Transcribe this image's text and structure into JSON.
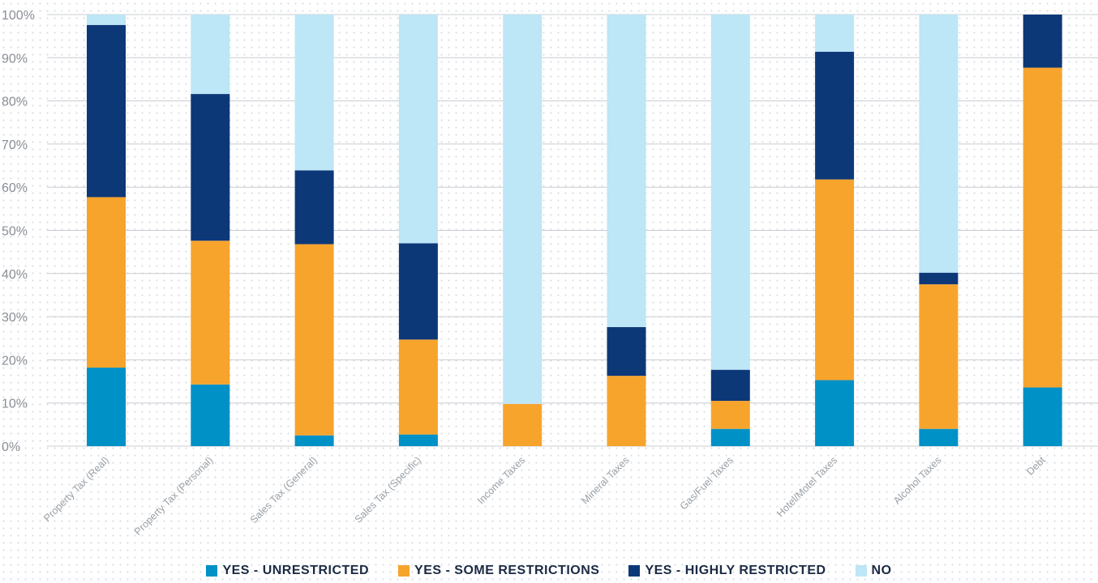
{
  "chart_data": {
    "type": "bar",
    "stacked": true,
    "normalized": true,
    "categories": [
      "Property Tax (Real)",
      "Property Tax (Personal)",
      "Sales Tax (General)",
      "Sales Tax (Specific)",
      "Income Taxes",
      "Mineral Taxes",
      "Gas/Fuel Taxes",
      "Hotel/Motel Taxes",
      "Alcohol Taxes",
      "Debt"
    ],
    "series": [
      {
        "name": "YES - UNRESTRICTED",
        "color": "#0091c7",
        "values": [
          18.2,
          14.3,
          2.5,
          2.7,
          0,
          0,
          4.0,
          15.3,
          4.0,
          13.6
        ]
      },
      {
        "name": "YES - SOME RESTRICTIONS",
        "color": "#f7a42d",
        "values": [
          39.5,
          33.3,
          44.3,
          22.0,
          9.8,
          16.3,
          6.5,
          46.5,
          33.5,
          74.1
        ]
      },
      {
        "name": "YES - HIGHLY RESTRICTED",
        "color": "#0d3878",
        "values": [
          39.9,
          34.0,
          17.1,
          22.3,
          0,
          11.3,
          7.2,
          29.6,
          2.7,
          12.3
        ]
      },
      {
        "name": "NO",
        "color": "#bde6f7",
        "values": [
          2.4,
          18.4,
          36.1,
          53.0,
          90.2,
          72.4,
          82.3,
          8.6,
          59.8,
          0
        ]
      }
    ],
    "yticks": [
      "0%",
      "10%",
      "20%",
      "30%",
      "40%",
      "50%",
      "60%",
      "70%",
      "80%",
      "90%",
      "100%"
    ],
    "ylim": [
      0,
      100
    ],
    "grid": true,
    "legend_position": "bottom"
  }
}
